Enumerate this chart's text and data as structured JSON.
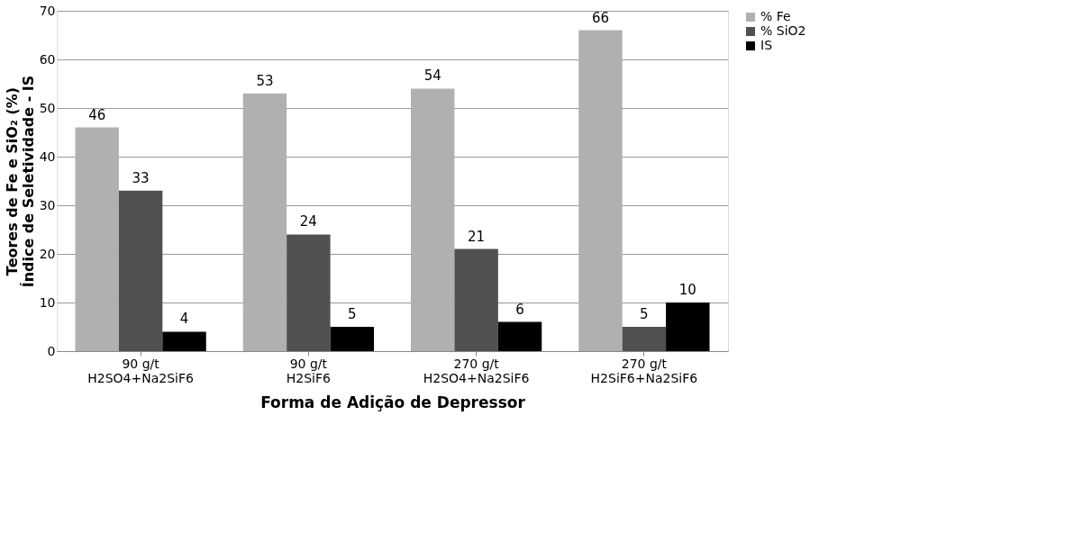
{
  "chart_data": {
    "type": "bar",
    "xlabel": "Forma de Adição de Depressor",
    "ylabel": "Teores de Fe e SiO₂ (%)\nÍndice de Seletividade - IS",
    "categories": [
      "90 g/t\nH2SO4+Na2SiF6",
      "90 g/t\nH2SiF6",
      "270 g/t\nH2SO4+Na2SiF6",
      "270 g/t\nH2SiF6+Na2SiF6"
    ],
    "series": [
      {
        "name": "% Fe",
        "color": "#b0b0b0",
        "values": [
          46,
          53,
          54,
          66
        ]
      },
      {
        "name": "% SiO2",
        "color": "#505050",
        "values": [
          33,
          24,
          21,
          5
        ]
      },
      {
        "name": "IS",
        "color": "#000000",
        "values": [
          4,
          5,
          6,
          10
        ]
      }
    ],
    "ylim": [
      0,
      70
    ],
    "yticks": [
      0,
      10,
      20,
      30,
      40,
      50,
      60,
      70
    ],
    "grid": "y",
    "legend": "right",
    "data_labels": true
  }
}
